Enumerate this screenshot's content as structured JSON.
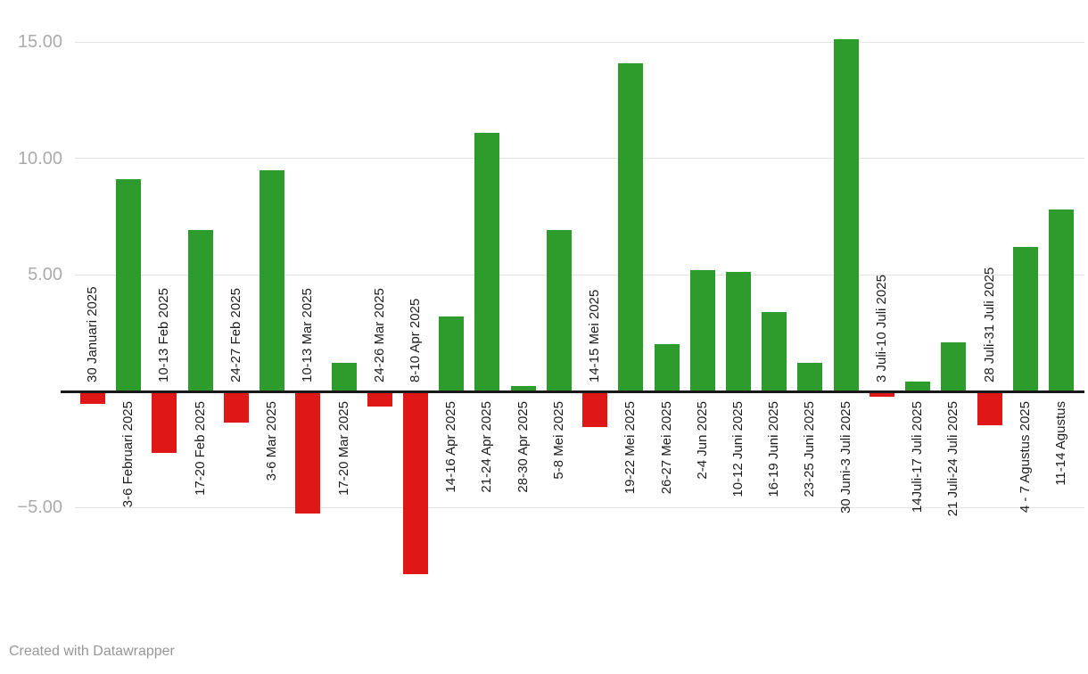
{
  "footer": {
    "credit": "Created with Datawrapper"
  },
  "chart_data": {
    "type": "bar",
    "title": "",
    "xlabel": "",
    "ylabel": "",
    "grid": true,
    "legend": "none",
    "ylim": [
      -8.2,
      15.6
    ],
    "y_ticks": [
      15,
      10,
      5,
      -5
    ],
    "y_tick_labels": [
      "15.00",
      "10.00",
      "5.00",
      "−5.00"
    ],
    "positive_color": "#2d9c2d",
    "negative_color": "#e01717",
    "label_color": "#1d1d1d",
    "categories": [
      "30 Januari 2025",
      "3-6 Februari 2025",
      "10-13 Feb 2025",
      "17-20 Feb 2025",
      "24-27 Feb 2025",
      "3-6 Mar 2025",
      "10-13 Mar 2025",
      "17-20 Mar 2025",
      "24-26 Mar 2025",
      "8-10 Apr 2025",
      "14-16 Apr 2025",
      "21-24 Apr 2025",
      "28-30 Apr 2025",
      "5-8 Mei 2025",
      "14-15 Mei 2025",
      "19-22 Mei 2025",
      "26-27 Mei 2025",
      "2-4 Jun 2025",
      "10-12 Juni 2025",
      "16-19 Juni 2025",
      "23-25 Juni 2025",
      "30 Juni-3 Juli 2025",
      "3 Juli-10 Juli 2025",
      "14Juli-17 Juli 2025",
      "21 Juli-24 Juli 2025",
      "28 Juli-31 Juli 2025",
      "4 - 7 Agustus 2025",
      "11-14 Agustus"
    ],
    "values": [
      -0.5,
      9.1,
      -2.6,
      6.9,
      -1.3,
      9.5,
      -5.2,
      1.2,
      -0.6,
      -7.8,
      3.2,
      11.1,
      0.2,
      6.9,
      -1.5,
      14.1,
      2.0,
      5.2,
      5.1,
      3.4,
      1.2,
      15.1,
      -0.2,
      0.4,
      2.1,
      -1.4,
      6.2,
      7.8
    ]
  }
}
